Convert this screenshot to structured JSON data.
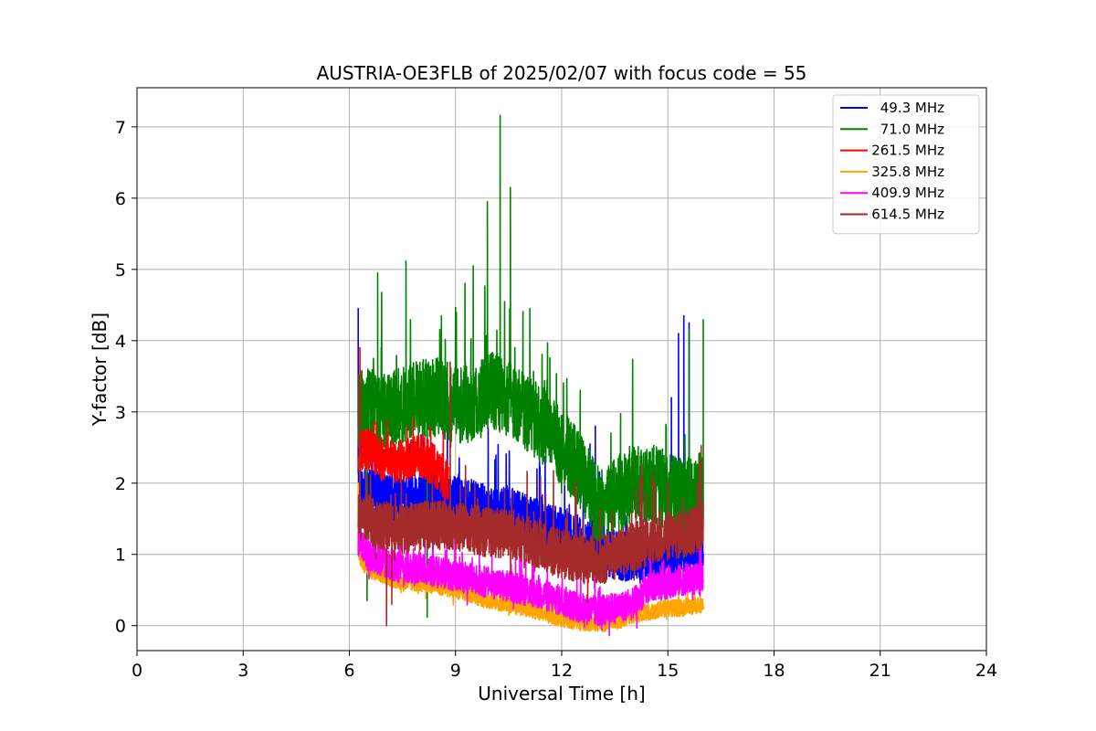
{
  "chart_data": {
    "type": "line",
    "title": "AUSTRIA-OE3FLB of 2025/02/07 with focus code = 55",
    "xlabel": "Universal Time [h]",
    "ylabel": "Y-factor [dB]",
    "xlim": [
      0,
      24
    ],
    "ylim": [
      -0.35,
      7.55
    ],
    "xticks": [
      "0",
      "3",
      "6",
      "9",
      "12",
      "15",
      "18",
      "21",
      "24"
    ],
    "yticks": [
      "0",
      "1",
      "2",
      "3",
      "4",
      "5",
      "6",
      "7"
    ],
    "grid": true,
    "legend_position": "top-right",
    "series": [
      {
        "name": "49.3 MHz",
        "color": "#0000ff",
        "profile": [
          [
            6.25,
            1.9
          ],
          [
            6.5,
            1.85
          ],
          [
            7.0,
            1.8
          ],
          [
            7.5,
            1.75
          ],
          [
            8.0,
            1.8
          ],
          [
            8.5,
            1.8
          ],
          [
            9.0,
            1.75
          ],
          [
            9.5,
            1.7
          ],
          [
            10.0,
            1.6
          ],
          [
            10.5,
            1.6
          ],
          [
            11.0,
            1.5
          ],
          [
            11.5,
            1.4
          ],
          [
            12.0,
            1.3
          ],
          [
            12.5,
            1.2
          ],
          [
            13.0,
            1.1
          ],
          [
            13.5,
            1.0
          ],
          [
            14.0,
            0.95
          ],
          [
            14.5,
            0.95
          ],
          [
            15.0,
            1.0
          ],
          [
            15.3,
            1.1
          ],
          [
            15.5,
            1.1
          ],
          [
            16.0,
            1.0
          ]
        ],
        "noise": 0.35,
        "peaks": [
          [
            6.25,
            4.45
          ],
          [
            15.1,
            3.2
          ],
          [
            15.3,
            4.1
          ],
          [
            15.45,
            4.35
          ],
          [
            15.6,
            4.25
          ],
          [
            12.95,
            2.8
          ],
          [
            12.8,
            2.55
          ],
          [
            11.3,
            2.2
          ],
          [
            7.7,
            2.55
          ]
        ]
      },
      {
        "name": "71.0 MHz",
        "color": "#008000",
        "profile": [
          [
            6.25,
            3.0
          ],
          [
            6.5,
            3.1
          ],
          [
            7.0,
            3.0
          ],
          [
            7.5,
            3.1
          ],
          [
            8.0,
            3.2
          ],
          [
            8.5,
            3.2
          ],
          [
            9.0,
            3.1
          ],
          [
            9.5,
            3.1
          ],
          [
            10.0,
            3.3
          ],
          [
            10.5,
            3.2
          ],
          [
            11.0,
            3.0
          ],
          [
            11.5,
            2.8
          ],
          [
            12.0,
            2.5
          ],
          [
            12.5,
            2.2
          ],
          [
            13.0,
            1.7
          ],
          [
            13.5,
            1.8
          ],
          [
            14.0,
            2.0
          ],
          [
            14.5,
            2.0
          ],
          [
            15.0,
            1.9
          ],
          [
            15.5,
            1.8
          ],
          [
            16.0,
            1.9
          ]
        ],
        "noise": 0.55,
        "peaks": [
          [
            7.6,
            5.12
          ],
          [
            10.26,
            7.16
          ],
          [
            9.9,
            5.95
          ],
          [
            10.55,
            6.15
          ],
          [
            9.5,
            5.05
          ],
          [
            6.8,
            4.95
          ],
          [
            13.0,
            0.95
          ],
          [
            8.2,
            0.12
          ],
          [
            6.5,
            0.35
          ],
          [
            16.0,
            4.3
          ],
          [
            15.6,
            4.15
          ],
          [
            11.1,
            4.45
          ]
        ]
      },
      {
        "name": "261.5 MHz",
        "color": "#ff0000",
        "profile": [
          [
            6.25,
            2.4
          ],
          [
            6.5,
            2.5
          ],
          [
            7.0,
            2.3
          ],
          [
            7.5,
            2.3
          ],
          [
            8.0,
            2.4
          ],
          [
            8.5,
            2.2
          ],
          [
            8.8,
            2.0
          ]
        ],
        "noise": 0.3,
        "peaks": [
          [
            6.3,
            3.9
          ],
          [
            7.8,
            2.9
          ],
          [
            8.3,
            2.8
          ],
          [
            8.7,
            1.7
          ]
        ]
      },
      {
        "name": "325.8 MHz",
        "color": "#ffa500",
        "profile": [
          [
            6.25,
            1.0
          ],
          [
            6.5,
            0.8
          ],
          [
            7.0,
            0.7
          ],
          [
            7.5,
            0.6
          ],
          [
            8.0,
            0.6
          ],
          [
            9.0,
            0.5
          ],
          [
            10.0,
            0.35
          ],
          [
            11.0,
            0.25
          ],
          [
            12.0,
            0.1
          ],
          [
            12.5,
            0.05
          ],
          [
            13.0,
            0.03
          ],
          [
            13.5,
            0.05
          ],
          [
            14.0,
            0.15
          ],
          [
            15.0,
            0.25
          ],
          [
            15.5,
            0.25
          ],
          [
            16.0,
            0.3
          ]
        ],
        "noise": 0.12,
        "peaks": [
          [
            6.25,
            2.0
          ],
          [
            6.3,
            2.35
          ]
        ]
      },
      {
        "name": "409.9 MHz",
        "color": "#ff00ff",
        "profile": [
          [
            6.25,
            1.2
          ],
          [
            6.5,
            1.0
          ],
          [
            7.0,
            0.9
          ],
          [
            7.5,
            0.8
          ],
          [
            8.0,
            0.8
          ],
          [
            9.0,
            0.7
          ],
          [
            10.0,
            0.6
          ],
          [
            11.0,
            0.5
          ],
          [
            12.0,
            0.35
          ],
          [
            12.5,
            0.25
          ],
          [
            13.0,
            0.2
          ],
          [
            13.5,
            0.25
          ],
          [
            14.0,
            0.3
          ],
          [
            14.5,
            0.55
          ],
          [
            15.0,
            0.6
          ],
          [
            15.5,
            0.65
          ],
          [
            16.0,
            0.65
          ]
        ],
        "noise": 0.22,
        "peaks": [
          [
            15.9,
            1.05
          ],
          [
            14.5,
            0.95
          ]
        ]
      },
      {
        "name": "614.5 MHz",
        "color": "#a52a2a",
        "profile": [
          [
            6.25,
            1.5
          ],
          [
            6.5,
            1.5
          ],
          [
            7.0,
            1.4
          ],
          [
            7.5,
            1.35
          ],
          [
            8.0,
            1.4
          ],
          [
            8.5,
            1.4
          ],
          [
            9.0,
            1.4
          ],
          [
            9.5,
            1.35
          ],
          [
            10.0,
            1.3
          ],
          [
            10.5,
            1.3
          ],
          [
            11.0,
            1.2
          ],
          [
            11.5,
            1.1
          ],
          [
            12.0,
            1.0
          ],
          [
            12.5,
            0.95
          ],
          [
            13.0,
            0.9
          ],
          [
            13.5,
            1.0
          ],
          [
            14.0,
            1.1
          ],
          [
            14.5,
            1.2
          ],
          [
            15.0,
            1.25
          ],
          [
            15.5,
            1.3
          ],
          [
            16.0,
            1.4
          ]
        ],
        "noise": 0.35,
        "peaks": [
          [
            8.85,
            3.7
          ],
          [
            6.3,
            2.8
          ],
          [
            7.05,
            0.0
          ],
          [
            7.2,
            0.3
          ],
          [
            15.9,
            2.3
          ],
          [
            11.4,
            2.1
          ]
        ]
      }
    ]
  }
}
